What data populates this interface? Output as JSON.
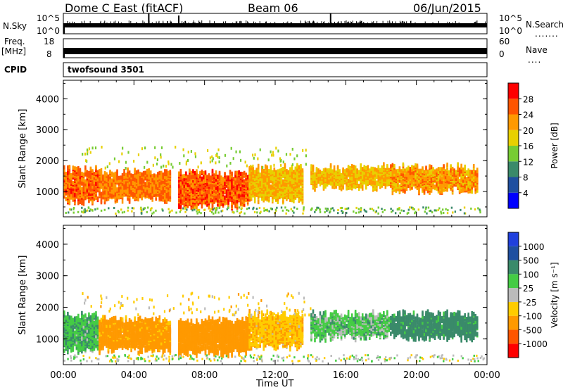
{
  "header": {
    "radar": "Dome C East (fitACF)",
    "beam": "Beam 06",
    "date": "06/Jun/2015"
  },
  "top_panels": {
    "nsky_label": "N.Sky",
    "nsky_ticks": [
      "10^5",
      "10^0"
    ],
    "nsearch_label": "N.Search",
    "nsearch_ticks": [
      "10^5",
      "10^0"
    ],
    "freq_label": "Freq.",
    "freq_unit": "[MHz]",
    "freq_ticks": [
      "18",
      "8"
    ],
    "nave_label": "Nave",
    "nave_ticks": [
      "60",
      "0"
    ],
    "cpid_label": "CPID",
    "cpid_value": "twofsound 3501"
  },
  "colors": {
    "power_scale": [
      "#0000ff",
      "#1f4fa0",
      "#3a8a6a",
      "#77cc33",
      "#e8d000",
      "#ff9900",
      "#ff5500",
      "#ff0000"
    ],
    "velocity_scale": [
      "#ff0000",
      "#ff5500",
      "#ff9900",
      "#ffcc00",
      "#bbbbbb",
      "#44cc44",
      "#3a8a6a",
      "#1f4fa0",
      "#2040dd"
    ]
  },
  "chart_data": [
    {
      "type": "heatmap",
      "name": "power",
      "xlabel": "Time UT",
      "ylabel": "Slant Range [km]",
      "x_ticks": [
        "00:00",
        "04:00",
        "08:00",
        "12:00",
        "16:00",
        "20:00",
        "00:00"
      ],
      "xlim_hours": [
        0,
        24
      ],
      "y_ticks": [
        1000,
        2000,
        3000,
        4000
      ],
      "ylim": [
        180,
        4600
      ],
      "colorbar_label": "Power [dB]",
      "colorbar_ticks": [
        "4",
        "8",
        "12",
        "16",
        "20",
        "24",
        "28"
      ],
      "colorbar_range": [
        0,
        32
      ],
      "regions": [
        {
          "t0": 0.0,
          "t1": 2.0,
          "r0": 650,
          "r1": 1650,
          "v": 25
        },
        {
          "t0": 2.0,
          "t1": 6.0,
          "r0": 700,
          "r1": 1550,
          "v": 24
        },
        {
          "t0": 6.5,
          "t1": 10.5,
          "r0": 500,
          "r1": 1500,
          "v": 26
        },
        {
          "t0": 10.5,
          "t1": 13.5,
          "r0": 700,
          "r1": 1700,
          "v": 20
        },
        {
          "t0": 14.0,
          "t1": 18.5,
          "r0": 1100,
          "r1": 1700,
          "v": 20
        },
        {
          "t0": 18.5,
          "t1": 23.5,
          "r0": 1000,
          "r1": 1700,
          "v": 22
        }
      ]
    },
    {
      "type": "heatmap",
      "name": "velocity",
      "xlabel": "Time UT",
      "ylabel": "Slant Range [km]",
      "x_ticks": [
        "00:00",
        "04:00",
        "08:00",
        "12:00",
        "16:00",
        "20:00",
        "00:00"
      ],
      "xlim_hours": [
        0,
        24
      ],
      "y_ticks": [
        1000,
        2000,
        3000,
        4000
      ],
      "ylim": [
        180,
        4600
      ],
      "colorbar_label": "Velocity [m s⁻¹]",
      "colorbar_ticks": [
        "-1000",
        "-500",
        "-100",
        "-25",
        "25",
        "100",
        "500",
        "1000"
      ],
      "regions": [
        {
          "t0": 0.0,
          "t1": 2.0,
          "r0": 600,
          "r1": 1650,
          "v": 80
        },
        {
          "t0": 2.0,
          "t1": 6.0,
          "r0": 600,
          "r1": 1550,
          "v": -150
        },
        {
          "t0": 6.5,
          "t1": 10.5,
          "r0": 500,
          "r1": 1500,
          "v": -200
        },
        {
          "t0": 10.5,
          "t1": 13.5,
          "r0": 700,
          "r1": 1700,
          "v": -80
        },
        {
          "t0": 14.0,
          "t1": 18.5,
          "r0": 1000,
          "r1": 1700,
          "v": 60
        },
        {
          "t0": 18.5,
          "t1": 23.5,
          "r0": 1000,
          "r1": 1700,
          "v": 150
        }
      ]
    }
  ]
}
